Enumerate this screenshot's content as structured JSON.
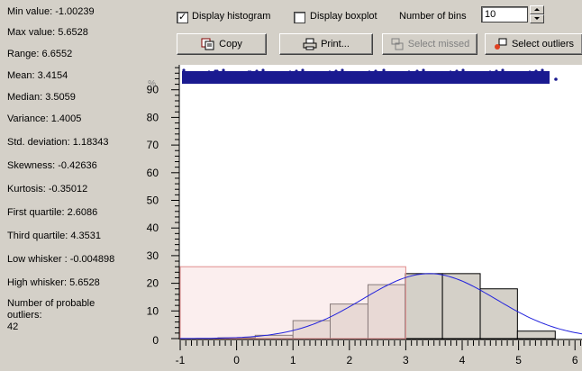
{
  "stats": [
    {
      "label": "Min value:",
      "value": "-1.00239"
    },
    {
      "label": "Max value:",
      "value": "5.6528"
    },
    {
      "label": "Range:",
      "value": "6.6552"
    },
    {
      "label": "Mean:",
      "value": "3.4154"
    },
    {
      "label": "Median:",
      "value": "3.5059"
    },
    {
      "label": "Variance:",
      "value": "1.4005"
    },
    {
      "label": "Std. deviation:",
      "value": "1.18343"
    },
    {
      "label": "Skewness:",
      "value": "-0.42636"
    },
    {
      "label": "Kurtosis:",
      "value": "-0.35012"
    },
    {
      "label": "First quartile:",
      "value": "2.6086"
    },
    {
      "label": "Third quartile:",
      "value": "4.3531"
    },
    {
      "label": "Low whisker :",
      "value": "-0.004898"
    },
    {
      "label": "High whisker:",
      "value": "5.6528"
    },
    {
      "label": "Number of probable outliers:",
      "value": "42"
    }
  ],
  "toolbar": {
    "display_histogram": {
      "label": "Display histogram",
      "checked": true
    },
    "display_boxplot": {
      "label": "Display boxplot",
      "checked": false
    },
    "bins_label": "Number of bins",
    "bins_value": "10"
  },
  "buttons": {
    "copy": "Copy",
    "print": "Print...",
    "select_missed": "Select missed",
    "select_outliers": "Select outliers"
  },
  "icons": {
    "copy": "copy-icon",
    "print": "printer-icon",
    "select_missed": "select-missed-icon",
    "select_outliers": "select-outliers-icon",
    "spin_up": "up-arrow-icon",
    "spin_down": "down-arrow-icon"
  },
  "colors": {
    "background": "#d4d0c8",
    "plot_background": "#ffffff",
    "bars_fill": "#d4d0c8",
    "selection_fill": "#f7e0e0",
    "selection_border": "#e08c8c",
    "density_curve": "#2222dd",
    "points": "#1a1a90"
  },
  "chart_data": {
    "type": "bar",
    "title": "",
    "xlabel": "",
    "ylabel": "%",
    "xlim": [
      -1,
      6.2
    ],
    "ylim": [
      0,
      100
    ],
    "x_ticks": [
      "-1",
      "0",
      "1",
      "2",
      "3",
      "4",
      "5",
      "6"
    ],
    "y_ticks": [
      "0",
      "10",
      "20",
      "30",
      "40",
      "50",
      "60",
      "70",
      "80",
      "90"
    ],
    "bins": [
      {
        "x0": -1.0,
        "x1": -0.33,
        "value": 0
      },
      {
        "x0": -0.33,
        "x1": 0.33,
        "value": 0.3
      },
      {
        "x0": 0.33,
        "x1": 1.0,
        "value": 1.2
      },
      {
        "x0": 1.0,
        "x1": 1.66,
        "value": 6.5
      },
      {
        "x0": 1.66,
        "x1": 2.33,
        "value": 12.5
      },
      {
        "x0": 2.33,
        "x1": 2.99,
        "value": 19.5
      },
      {
        "x0": 2.99,
        "x1": 3.65,
        "value": 23.5
      },
      {
        "x0": 3.65,
        "x1": 4.32,
        "value": 23.5
      },
      {
        "x0": 4.32,
        "x1": 4.98,
        "value": 18.0
      },
      {
        "x0": 4.98,
        "x1": 5.65,
        "value": 2.7
      }
    ],
    "density_curve": {
      "mean": 3.4154,
      "sd": 1.18343,
      "peak": 23.5
    },
    "selection": {
      "x0": -1.0,
      "x1": 3.0,
      "height": 26
    }
  }
}
